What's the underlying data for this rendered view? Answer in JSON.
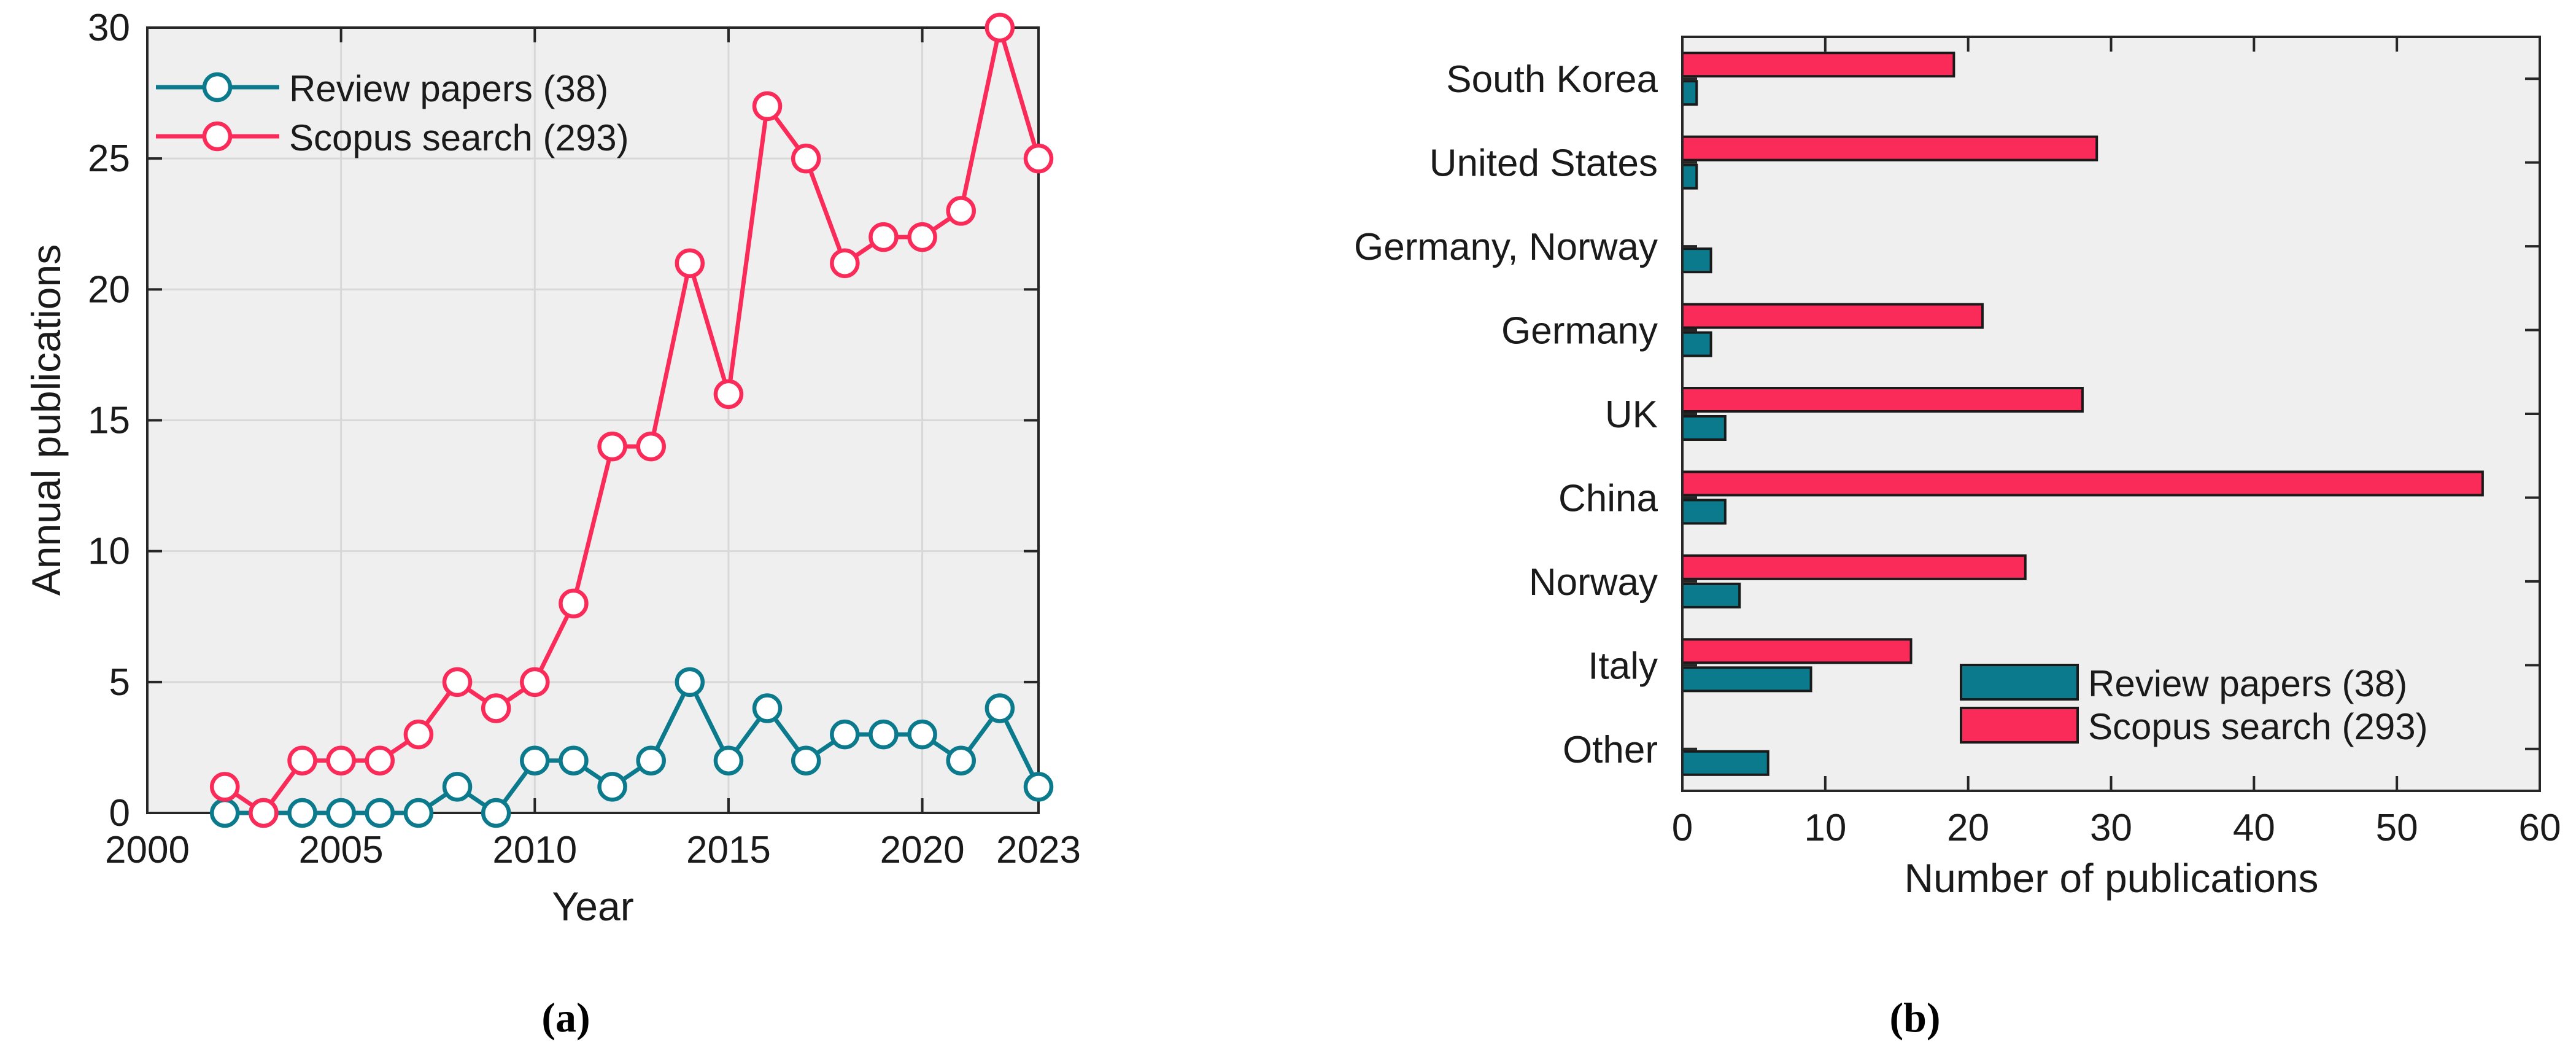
{
  "figure": {
    "captions": {
      "a": "(a)",
      "b": "(b)"
    },
    "colors": {
      "review_teal": "#0b7a8c",
      "scopus_pink": "#fa2b59",
      "plot_background": "#efefef",
      "gridline": "#d8d8d8",
      "axis": "#262626",
      "marker_fill": "#ffffff",
      "bar_outline": "#1a1a1a"
    }
  },
  "chart_data": [
    {
      "id": "annual-publications-line-chart",
      "type": "line",
      "title": "",
      "xlabel": "Year",
      "ylabel": "Annual publications",
      "xlim": [
        2000,
        2023
      ],
      "ylim": [
        0,
        30
      ],
      "xticks": [
        2000,
        2005,
        2010,
        2015,
        2020,
        2023
      ],
      "yticks": [
        0,
        5,
        10,
        15,
        20,
        25,
        30
      ],
      "grid": true,
      "legend_position": "top-left",
      "x": [
        2002,
        2003,
        2004,
        2005,
        2006,
        2007,
        2008,
        2009,
        2010,
        2011,
        2012,
        2013,
        2014,
        2015,
        2016,
        2017,
        2018,
        2019,
        2020,
        2021,
        2022,
        2023
      ],
      "series": [
        {
          "name": "Review papers (38)",
          "color": "#0b7a8c",
          "marker": "open-circle",
          "values": [
            0,
            0,
            0,
            0,
            0,
            0,
            1,
            0,
            2,
            2,
            1,
            2,
            5,
            2,
            4,
            2,
            3,
            3,
            3,
            2,
            4,
            1
          ]
        },
        {
          "name": "Scopus search (293)",
          "color": "#fa2b59",
          "marker": "open-circle",
          "values": [
            1,
            0,
            2,
            2,
            2,
            3,
            5,
            4,
            5,
            8,
            14,
            14,
            21,
            16,
            27,
            25,
            21,
            22,
            22,
            23,
            30,
            25
          ]
        }
      ]
    },
    {
      "id": "publications-by-country-bar-chart",
      "type": "bar",
      "orientation": "horizontal",
      "title": "",
      "xlabel": "Number of publications",
      "ylabel": "",
      "xlim": [
        0,
        60
      ],
      "xticks": [
        0,
        10,
        20,
        30,
        40,
        50,
        60
      ],
      "grid": false,
      "legend_position": "bottom-right",
      "categories": [
        "South Korea",
        "United States",
        "Germany, Norway",
        "Germany",
        "UK",
        "China",
        "Norway",
        "Italy",
        "Other"
      ],
      "series": [
        {
          "name": "Scopus search (293)",
          "color": "#fa2b59",
          "values": [
            19,
            29,
            0,
            21,
            28,
            56,
            24,
            16,
            0
          ]
        },
        {
          "name": "Review papers (38)",
          "color": "#0b7a8c",
          "values": [
            1,
            1,
            2,
            2,
            3,
            3,
            4,
            9,
            6
          ]
        }
      ],
      "legend": [
        "Review papers (38)",
        "Scopus search (293)"
      ]
    }
  ]
}
